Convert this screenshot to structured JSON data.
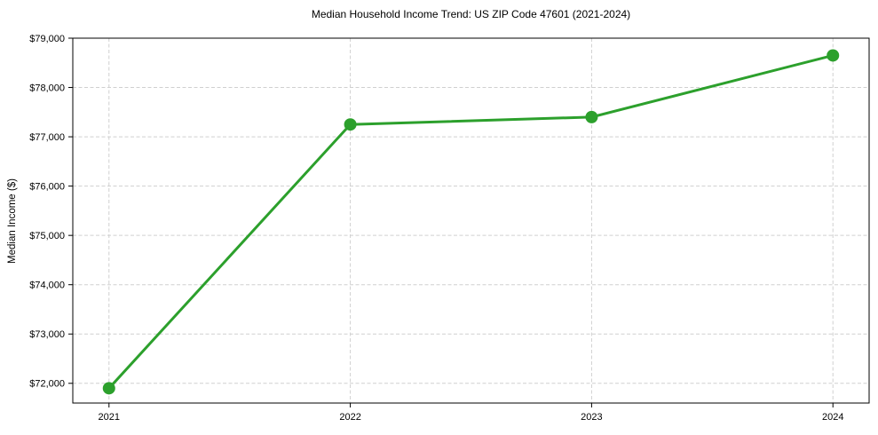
{
  "figure": {
    "background": "#ffffff",
    "text_color": "#000000"
  },
  "chart_data": {
    "type": "line",
    "title": "Median Household Income Trend: US ZIP Code 47601 (2021-2024)",
    "xlabel": "",
    "ylabel": "Median Income ($)",
    "x": [
      2021,
      2022,
      2023,
      2024
    ],
    "values": [
      71900,
      77250,
      77400,
      78650
    ],
    "xlim": [
      2020.85,
      2024.15
    ],
    "ylim": [
      71600,
      79000
    ],
    "xticks": [
      2021,
      2022,
      2023,
      2024
    ],
    "xtick_labels": [
      "2021",
      "2022",
      "2023",
      "2024"
    ],
    "yticks": [
      72000,
      73000,
      74000,
      75000,
      76000,
      77000,
      78000,
      79000
    ],
    "ytick_labels": [
      "$72,000",
      "$73,000",
      "$74,000",
      "$75,000",
      "$76,000",
      "$77,000",
      "$78,000",
      "$79,000"
    ],
    "grid": true,
    "grid_style": "dashed",
    "grid_color": "#d0d0d0",
    "line_color": "#2ca02c",
    "marker": "o",
    "marker_radius": 7,
    "line_width": 3,
    "legend": false
  }
}
